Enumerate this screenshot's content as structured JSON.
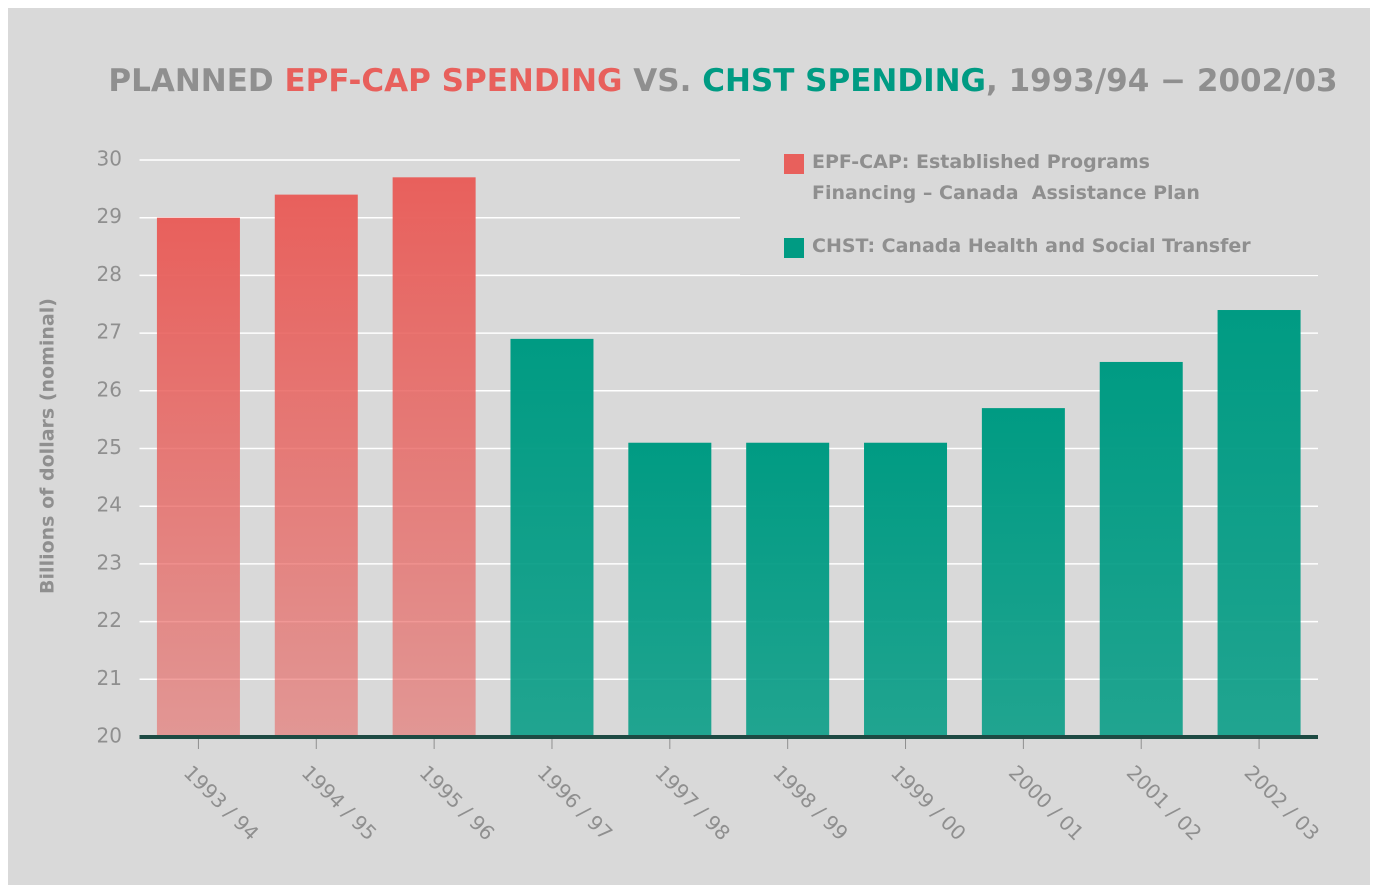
{
  "chart_data": {
    "type": "bar",
    "title": [
      {
        "text": "PLANNED ",
        "color": "#8f8f8f"
      },
      {
        "text": "EPF-CAP SPENDING",
        "color": "#e8605c"
      },
      {
        "text": " VS. ",
        "color": "#8f8f8f"
      },
      {
        "text": "CHST SPENDING",
        "color": "#009b83"
      },
      {
        "text": ", 1993/94 − 2002/03",
        "color": "#8f8f8f"
      }
    ],
    "y_label": "Billions of dollars (nominal)",
    "categories": [
      "1993 / 94",
      "1994 / 95",
      "1995 / 96",
      "1996 / 97",
      "1997 / 98",
      "1998 / 99",
      "1999 / 00",
      "2000 / 01",
      "2001 / 02",
      "2002 / 03"
    ],
    "series": [
      {
        "name": "EPF-CAP: Established Programs Financing – Canada  Assistance Plan",
        "color": "#e8605c",
        "values": [
          29.0,
          29.4,
          29.7,
          null,
          null,
          null,
          null,
          null,
          null,
          null
        ]
      },
      {
        "name": "CHST: Canada Health and Social Transfer",
        "color": "#009b83",
        "values": [
          null,
          null,
          null,
          26.9,
          25.1,
          25.1,
          25.1,
          25.7,
          26.5,
          27.4
        ]
      }
    ],
    "ylim": [
      20,
      30
    ],
    "yticks": [
      20,
      21,
      22,
      23,
      24,
      25,
      26,
      27,
      28,
      29,
      30
    ],
    "grid": true,
    "legend": "top-right"
  }
}
